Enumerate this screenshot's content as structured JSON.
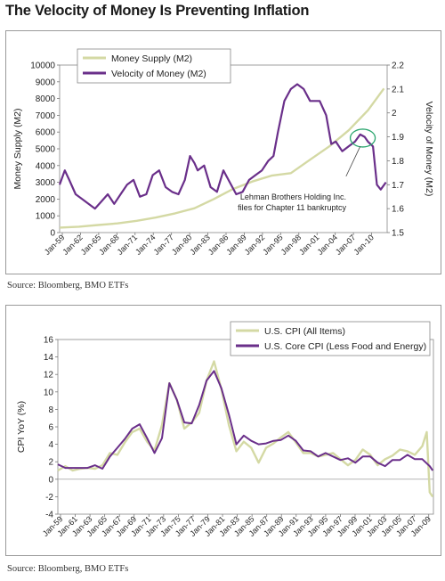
{
  "page_title": "The Velocity of Money Is Preventing Inflation",
  "source1": "Source: Bloomberg, BMO ETFs",
  "source2": "Source: Bloomberg, BMO ETFs",
  "colors": {
    "m2": "#d4d9a4",
    "velocity": "#6a2f8a",
    "cpi": "#d4d9a4",
    "core": "#6a2f8a"
  },
  "chart_data": [
    {
      "type": "line",
      "title": "",
      "xlabel": "",
      "ylabel": "Money Supply (M2)",
      "y2label": "Velocity of Money (M2)",
      "ylim": [
        0,
        10000
      ],
      "y2lim": [
        1.5,
        2.2
      ],
      "yticks": [
        "10000",
        "9000",
        "8000",
        "7000",
        "6000",
        "5000",
        "4000",
        "3000",
        "2000",
        "1000",
        "0"
      ],
      "y2ticks": [
        "2.2",
        "2.1",
        "2",
        "1.9",
        "1.8",
        "1.7",
        "1.6",
        "1.5"
      ],
      "xticks": [
        "Jan-59",
        "Jan-62",
        "Jan-65",
        "Jan-68",
        "Jan-71",
        "Jan-74",
        "Jan-77",
        "Jan-80",
        "Jan-83",
        "Jan-86",
        "Jan-89",
        "Jan-92",
        "Jan-95",
        "Jan-98",
        "Jan-01",
        "Jan-04",
        "Jan-07",
        "Jan-10"
      ],
      "legend_position": "top-left",
      "annotation": {
        "text_line1": "Lehman Brothers Holding Inc.",
        "text_line2": "files for Chapter 11 bankruptcy"
      },
      "series": [
        {
          "name": "Money Supply (M2)",
          "axis": "left",
          "x": [
            1959,
            1962,
            1965,
            1968,
            1971,
            1974,
            1977,
            1980,
            1983,
            1986,
            1989,
            1992,
            1995,
            1998,
            2001,
            2004,
            2007,
            2009.5
          ],
          "values": [
            300,
            350,
            450,
            550,
            700,
            900,
            1150,
            1450,
            2000,
            2600,
            3050,
            3400,
            3550,
            4350,
            5150,
            6100,
            7300,
            8600
          ]
        },
        {
          "name": "Velocity of Money (M2)",
          "axis": "right",
          "x": [
            1959,
            1959.8,
            1960.5,
            1961.5,
            1962.5,
            1963.5,
            1964.5,
            1965.5,
            1966.5,
            1967.5,
            1968.5,
            1969.5,
            1970.5,
            1971.5,
            1972.5,
            1973.5,
            1974.5,
            1975.5,
            1976.5,
            1977.5,
            1978.5,
            1979.3,
            1980,
            1980.5,
            1981.5,
            1982.5,
            1983.5,
            1984.5,
            1985.5,
            1986.5,
            1987.5,
            1988.5,
            1989.5,
            1990.5,
            1991.5,
            1992.3,
            1993,
            1994,
            1995,
            1996,
            1997,
            1998,
            1998.8,
            1999.5,
            2000.5,
            2001.3,
            2002,
            2003,
            2004,
            2005,
            2005.8,
            2006.5,
            2007,
            2007.8,
            2008.4,
            2009,
            2009.8
          ],
          "values": [
            1.7,
            1.76,
            1.72,
            1.66,
            1.64,
            1.62,
            1.6,
            1.63,
            1.66,
            1.62,
            1.66,
            1.7,
            1.72,
            1.65,
            1.66,
            1.74,
            1.76,
            1.69,
            1.67,
            1.66,
            1.72,
            1.82,
            1.79,
            1.76,
            1.78,
            1.69,
            1.67,
            1.76,
            1.71,
            1.66,
            1.67,
            1.72,
            1.74,
            1.76,
            1.8,
            1.82,
            1.92,
            2.05,
            2.1,
            2.12,
            2.1,
            2.05,
            2.05,
            2.05,
            1.99,
            1.87,
            1.88,
            1.84,
            1.86,
            1.88,
            1.91,
            1.9,
            1.88,
            1.86,
            1.7,
            1.68,
            1.71
          ]
        }
      ]
    },
    {
      "type": "line",
      "title": "",
      "xlabel": "",
      "ylabel": "CPI YoY (%)",
      "ylim": [
        -4,
        16
      ],
      "yticks": [
        "16",
        "14",
        "12",
        "10",
        "8",
        "6",
        "4",
        "2",
        "0",
        "-2",
        "-4"
      ],
      "xticks": [
        "Jan-59",
        "Jan-61",
        "Jan-63",
        "Jan-65",
        "Jan-67",
        "Jan-69",
        "Jan-71",
        "Jan-73",
        "Jan-75",
        "Jan-77",
        "Jan-79",
        "Jan-81",
        "Jan-83",
        "Jan-85",
        "Jan-87",
        "Jan-89",
        "Jan-91",
        "Jan-93",
        "Jan-95",
        "Jan-97",
        "Jan-99",
        "Jan-01",
        "Jan-03",
        "Jan-05",
        "Jan-07",
        "Jan-09"
      ],
      "legend_position": "top-right",
      "series": [
        {
          "name": "U.S. CPI (All Items)",
          "x": [
            1959,
            1960,
            1961,
            1962,
            1963,
            1964,
            1965,
            1966,
            1967,
            1968,
            1969,
            1970,
            1971,
            1972,
            1973,
            1974,
            1975,
            1976,
            1977,
            1978,
            1979,
            1980,
            1981,
            1982,
            1983,
            1984,
            1985,
            1986,
            1987,
            1988,
            1989,
            1990,
            1991,
            1992,
            1993,
            1994,
            1995,
            1996,
            1997,
            1998,
            1999,
            2000,
            2001,
            2002,
            2003,
            2004,
            2005,
            2006,
            2007,
            2008,
            2008.6,
            2009,
            2009.4
          ],
          "values": [
            1.0,
            1.5,
            1.0,
            1.2,
            1.3,
            1.2,
            1.6,
            3.0,
            2.8,
            4.2,
            5.4,
            5.8,
            4.3,
            3.3,
            6.2,
            11.0,
            9.1,
            5.8,
            6.5,
            7.6,
            11.3,
            13.5,
            10.3,
            6.2,
            3.2,
            4.3,
            3.6,
            1.9,
            3.6,
            4.1,
            4.8,
            5.4,
            4.2,
            3.0,
            3.0,
            2.6,
            2.8,
            3.0,
            2.3,
            1.6,
            2.2,
            3.4,
            2.8,
            1.6,
            2.3,
            2.7,
            3.4,
            3.2,
            2.8,
            3.8,
            5.4,
            -1.5,
            -2.0
          ]
        },
        {
          "name": "U.S. Core CPI (Less Food and Energy)",
          "x": [
            1959,
            1960,
            1961,
            1962,
            1963,
            1964,
            1965,
            1966,
            1967,
            1968,
            1969,
            1970,
            1971,
            1972,
            1973,
            1974,
            1975,
            1976,
            1977,
            1978,
            1979,
            1980,
            1981,
            1982,
            1983,
            1984,
            1985,
            1986,
            1987,
            1988,
            1989,
            1990,
            1991,
            1992,
            1993,
            1994,
            1995,
            1996,
            1997,
            1998,
            1999,
            2000,
            2001,
            2002,
            2003,
            2004,
            2005,
            2006,
            2007,
            2008,
            2009,
            2009.4
          ],
          "values": [
            1.7,
            1.3,
            1.3,
            1.3,
            1.3,
            1.6,
            1.2,
            2.6,
            3.6,
            4.6,
            5.8,
            6.3,
            4.7,
            3.0,
            4.7,
            11.0,
            9.1,
            6.5,
            6.4,
            8.5,
            11.3,
            12.4,
            10.4,
            7.4,
            4.0,
            5.0,
            4.4,
            4.0,
            4.1,
            4.4,
            4.5,
            5.0,
            4.4,
            3.3,
            3.2,
            2.6,
            3.0,
            2.6,
            2.2,
            2.4,
            1.9,
            2.6,
            2.6,
            1.9,
            1.5,
            2.2,
            2.2,
            2.8,
            2.3,
            2.3,
            1.5,
            1.0
          ]
        }
      ]
    }
  ]
}
